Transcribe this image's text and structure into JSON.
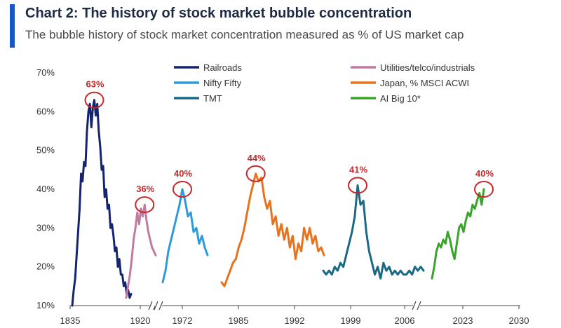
{
  "header": {
    "title": "Chart 2: The history of stock market bubble concentration",
    "subtitle": "The bubble history of stock market concentration measured as % of US market cap"
  },
  "chart_data": {
    "type": "line",
    "title": "Chart 2: The history of stock market bubble concentration",
    "subtitle": "The bubble history of stock market concentration measured as % of US market cap",
    "xlabel": "",
    "ylabel": "",
    "ylim": [
      10,
      70
    ],
    "y_ticks": [
      "10%",
      "20%",
      "30%",
      "40%",
      "50%",
      "60%",
      "70%"
    ],
    "x_ticks": [
      "1835",
      "1920",
      "1972",
      "1985",
      "1992",
      "1999",
      "2006",
      "2023",
      "2030"
    ],
    "axis_breaks": 3,
    "grid": false,
    "legend_placement": "top",
    "series": [
      {
        "name": "Railroads",
        "color": "#14246e",
        "x": [
          0,
          1,
          2,
          3,
          4,
          5,
          6,
          7,
          8,
          9,
          10,
          11,
          12,
          13,
          14,
          15,
          16,
          17,
          18,
          19,
          20,
          21,
          22,
          23,
          24,
          25,
          26,
          27,
          28,
          29,
          30,
          31,
          32,
          33,
          34,
          35,
          36,
          37,
          38,
          39,
          40
        ],
        "values": [
          10,
          14,
          17,
          23,
          29,
          35,
          44,
          42,
          47,
          46,
          55,
          60,
          62,
          56,
          61,
          63,
          59,
          62,
          55,
          51,
          45,
          46,
          38,
          40,
          35,
          36,
          30,
          31,
          28,
          24,
          25,
          20,
          22,
          18,
          18,
          15,
          16,
          13,
          14,
          12,
          13
        ]
      },
      {
        "name": "Utilities/telco/industrials",
        "color": "#c17aa0",
        "x": [
          0,
          1,
          2,
          3,
          4,
          5,
          6,
          7,
          8,
          9,
          10,
          11,
          12,
          13,
          14,
          15,
          16
        ],
        "values": [
          12,
          15,
          18,
          22,
          27,
          30,
          34,
          31,
          35,
          33,
          36,
          32,
          29,
          27,
          25,
          24,
          23
        ]
      },
      {
        "name": "Nifty Fifty",
        "color": "#2e9ad9",
        "x": [
          0,
          1,
          2,
          3,
          4,
          5,
          6,
          7,
          8,
          9,
          10,
          11,
          12,
          13,
          14,
          15,
          16
        ],
        "values": [
          16,
          19,
          24,
          27,
          30,
          33,
          36,
          40,
          37,
          33,
          34,
          29,
          30,
          26,
          28,
          25,
          23
        ]
      },
      {
        "name": "Japan, % MSCI ACWI",
        "color": "#e8731e",
        "x": [
          0,
          1,
          2,
          3,
          4,
          5,
          6,
          7,
          8,
          9,
          10,
          11,
          12,
          13,
          14,
          15,
          16,
          17,
          18,
          19,
          20,
          21,
          22,
          23,
          24,
          25,
          26,
          27,
          28,
          29,
          30,
          31,
          32,
          33,
          34,
          35,
          36
        ],
        "values": [
          16,
          15,
          17,
          19,
          21,
          22,
          25,
          27,
          30,
          34,
          38,
          41,
          44,
          42,
          43,
          38,
          35,
          37,
          31,
          33,
          28,
          31,
          27,
          30,
          25,
          28,
          22,
          26,
          24,
          30,
          27,
          30,
          26,
          28,
          24,
          25,
          23
        ]
      },
      {
        "name": "TMT",
        "color": "#1a6a86",
        "x": [
          0,
          1,
          2,
          3,
          4,
          5,
          6,
          7,
          8,
          9,
          10,
          11,
          12,
          13,
          14,
          15,
          16,
          17,
          18,
          19,
          20,
          21,
          22,
          23,
          24,
          25,
          26,
          27,
          28,
          29,
          30,
          31,
          32,
          33,
          34,
          35
        ],
        "values": [
          19,
          18,
          19,
          18,
          20,
          19,
          21,
          20,
          23,
          26,
          29,
          33,
          41,
          36,
          37,
          29,
          24,
          21,
          18,
          20,
          17,
          21,
          19,
          20,
          18,
          19,
          18,
          19,
          18,
          18,
          19,
          18,
          20,
          19,
          20,
          19
        ]
      },
      {
        "name": "AI Big 10*",
        "color": "#3aa329",
        "x": [
          0,
          1,
          2,
          3,
          4,
          5,
          6,
          7,
          8,
          9,
          10,
          11,
          12,
          13,
          14,
          15,
          16,
          17,
          18,
          19,
          20,
          21,
          22,
          23
        ],
        "values": [
          17,
          20,
          24,
          26,
          25,
          27,
          26,
          29,
          27,
          24,
          22,
          26,
          30,
          31,
          29,
          32,
          34,
          33,
          36,
          35,
          37,
          39,
          36,
          40
        ]
      }
    ],
    "annotations": [
      {
        "text": "63%",
        "series": 0,
        "point": 15
      },
      {
        "text": "36%",
        "series": 1,
        "point": 10
      },
      {
        "text": "40%",
        "series": 2,
        "point": 7
      },
      {
        "text": "44%",
        "series": 3,
        "point": 12
      },
      {
        "text": "41%",
        "series": 4,
        "point": 12
      },
      {
        "text": "40%",
        "series": 5,
        "point": 23
      }
    ]
  }
}
